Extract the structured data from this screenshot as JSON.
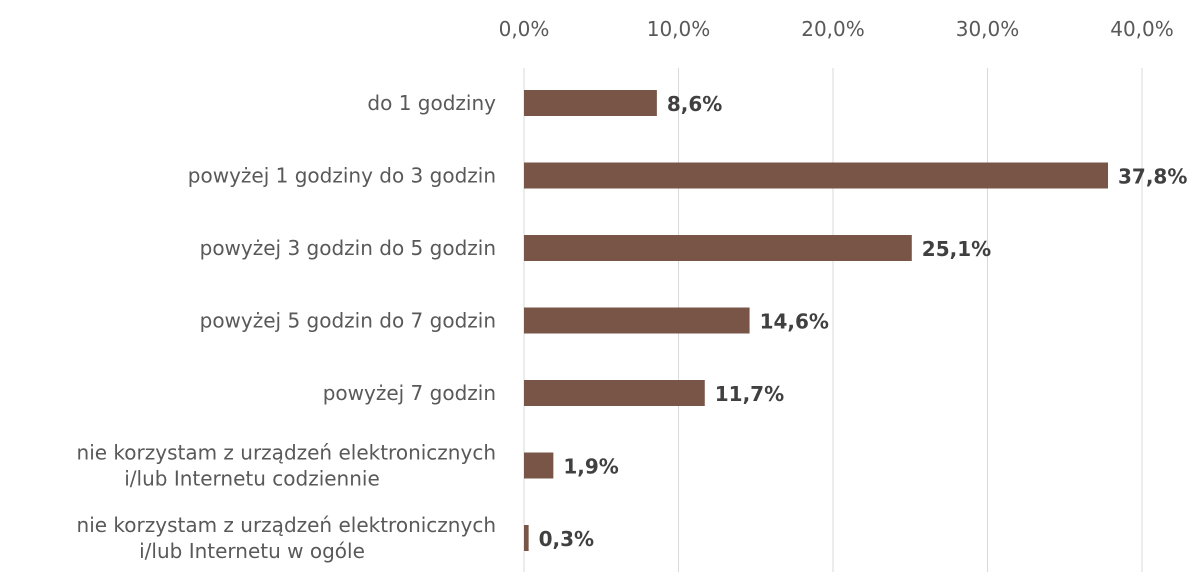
{
  "chart_data": {
    "type": "bar",
    "orientation": "horizontal",
    "categories": [
      [
        "do 1 godziny"
      ],
      [
        "powyżej 1 godziny do 3 godzin"
      ],
      [
        "powyżej 3 godzin do 5 godzin"
      ],
      [
        "powyżej 5 godzin do 7 godzin"
      ],
      [
        "powyżej 7 godzin"
      ],
      [
        "nie korzystam z urządzeń elektronicznych",
        "i/lub Internetu codziennie"
      ],
      [
        "nie korzystam z urządzeń elektronicznych",
        "i/lub Internetu w ogóle"
      ]
    ],
    "values": [
      8.6,
      37.8,
      25.1,
      14.6,
      11.7,
      1.9,
      0.3
    ],
    "data_labels": [
      "8,6%",
      "37,8%",
      "25,1%",
      "14,6%",
      "11,7%",
      "1,9%",
      "0,3%"
    ],
    "xlim": [
      0,
      43
    ],
    "x_ticks": [
      0,
      10,
      20,
      30,
      40
    ],
    "x_tick_labels": [
      "0,0%",
      "10,0%",
      "20,0%",
      "30,0%",
      "40,0%"
    ],
    "x_axis_position": "top",
    "grid": "vertical",
    "bar_color": "#795548",
    "title": "",
    "xlabel": "",
    "ylabel": ""
  }
}
